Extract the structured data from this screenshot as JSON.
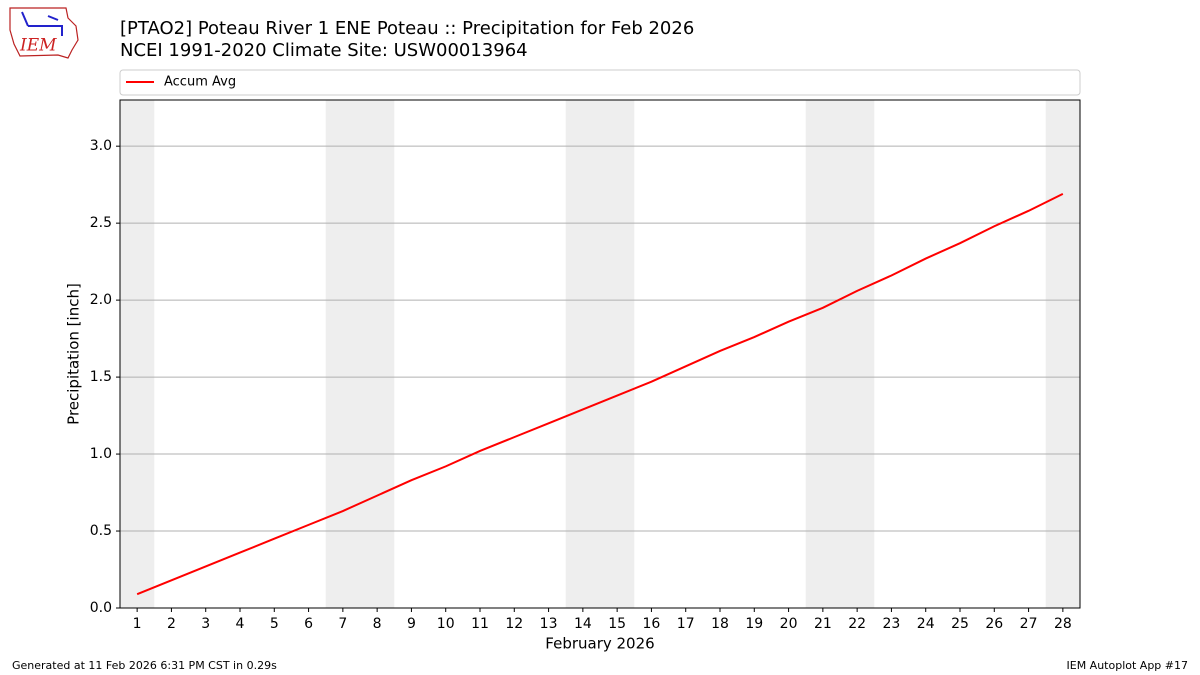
{
  "logo_text": "IEM",
  "footer": {
    "left": "Generated at 11 Feb 2026 6:31 PM CST in 0.29s",
    "right": "IEM Autoplot App #17"
  },
  "chart_data": {
    "type": "line",
    "title": "[PTAO2] Poteau River 1 ENE Poteau :: Precipitation for Feb 2026",
    "subtitle": "NCEI 1991-2020 Climate Site: USW00013964",
    "x_label": "February 2026",
    "y_label": "Precipitation [inch]",
    "x": [
      1,
      2,
      3,
      4,
      5,
      6,
      7,
      8,
      9,
      10,
      11,
      12,
      13,
      14,
      15,
      16,
      17,
      18,
      19,
      20,
      21,
      22,
      23,
      24,
      25,
      26,
      27,
      28
    ],
    "series": [
      {
        "name": "Accum Avg",
        "color": "#ff0000",
        "values": [
          0.09,
          0.18,
          0.27,
          0.36,
          0.45,
          0.54,
          0.63,
          0.73,
          0.83,
          0.92,
          1.02,
          1.11,
          1.2,
          1.29,
          1.38,
          1.47,
          1.57,
          1.67,
          1.76,
          1.86,
          1.95,
          2.06,
          2.16,
          2.27,
          2.37,
          2.48,
          2.58,
          2.69
        ]
      }
    ],
    "xlim": [
      0.5,
      28.5
    ],
    "ylim": [
      0,
      3.3
    ],
    "xticks": [
      1,
      2,
      3,
      4,
      5,
      6,
      7,
      8,
      9,
      10,
      11,
      12,
      13,
      14,
      15,
      16,
      17,
      18,
      19,
      20,
      21,
      22,
      23,
      24,
      25,
      26,
      27,
      28
    ],
    "yticks": [
      {
        "value": 0,
        "label": "0.0"
      },
      0.5,
      {
        "value": 1,
        "label": "1.0"
      },
      1.5,
      {
        "value": 2,
        "label": "2.0"
      },
      2.5,
      {
        "value": 3,
        "label": "3.0"
      }
    ],
    "shaded_spans": [
      [
        0.5,
        1.5
      ],
      [
        6.5,
        8.5
      ],
      [
        13.5,
        15.5
      ],
      [
        20.5,
        22.5
      ],
      [
        27.5,
        28.5
      ]
    ],
    "shade_color": "#eeeeee",
    "grid": true,
    "legend": "top"
  }
}
